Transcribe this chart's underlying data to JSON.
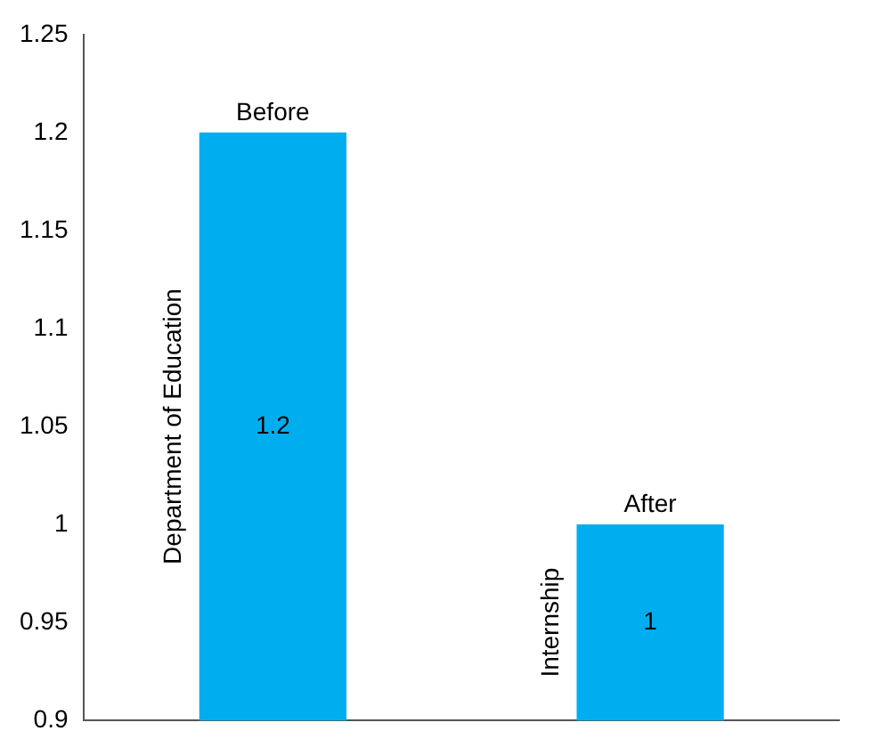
{
  "chart_data": {
    "type": "bar",
    "categories": [
      "Before",
      "After"
    ],
    "values": [
      1.2,
      1
    ],
    "color": "#00aeef",
    "ylim": [
      0.9,
      1.25
    ],
    "yticks": [
      0.9,
      0.95,
      1,
      1.05,
      1.1,
      1.15,
      1.2,
      1.25
    ],
    "grid": false,
    "legend": false,
    "data_labels": true,
    "annotations": [
      "Department of Education",
      "Internship"
    ]
  }
}
